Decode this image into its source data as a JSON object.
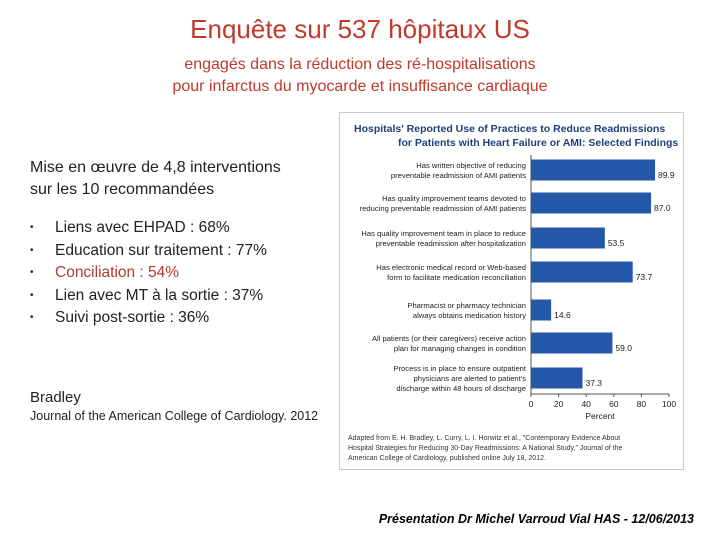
{
  "slide": {
    "title": "Enquête sur 537 hôpitaux US",
    "subtitle_line1": "engagés dans la réduction des ré-hospitalisations",
    "subtitle_line2": "pour infarctus du myocarde et insuffisance cardiaque",
    "intro_line1": "Mise en œuvre de 4,8 interventions",
    "intro_line2": "sur les 10 recommandées",
    "bullets": [
      "Liens avec EHPAD : 68%",
      "Education sur traitement : 77%",
      "Conciliation : 54%",
      "Lien avec MT à la sortie : 37%",
      "Suivi post-sortie : 36%"
    ],
    "author": "Bradley",
    "journal": "Journal of the American College of Cardiology. 2012",
    "footer": "Présentation Dr Michel Varroud Vial HAS - 12/06/2013"
  },
  "colors": {
    "title": "#c0392b",
    "accent_bullet": "#b03a2e",
    "bar": "#2457a8",
    "figure_title": "#1f3f7a"
  },
  "chart_data": {
    "type": "bar",
    "orientation": "horizontal",
    "title_line1": "Hospitals' Reported Use of Practices to Reduce Readmissions",
    "title_line2": "for Patients with Heart Failure or AMI: Selected Findings",
    "categories": [
      [
        "Has written objective of reducing",
        "preventable readmission of AMI patients"
      ],
      [
        "Has quality improvement teams devoted to",
        "reducing preventable readmission of AMI patients"
      ],
      [
        "Has quality improvement team in place to reduce",
        "preventable readmission after hospitalization"
      ],
      [
        "Has electronic medical record or Web-based",
        "form to facilitate medication reconciliation"
      ],
      [
        "Pharmacist or pharmacy technician",
        "always obtains medication history"
      ],
      [
        "All patients (or their caregivers) receive action",
        "plan for managing changes in condition"
      ],
      [
        "Process is in place to ensure outpatient",
        "physicians are alerted to patient's",
        "discharge within 48 hours of discharge"
      ]
    ],
    "values": [
      89.9,
      87.0,
      53.5,
      73.7,
      14.6,
      59.0,
      37.3
    ],
    "value_labels": [
      "89.9",
      "87.0",
      "53.5",
      "73.7",
      "14.6",
      "59.0",
      "37.3"
    ],
    "xlim": [
      0,
      100
    ],
    "xticks": [
      "0",
      "20",
      "40",
      "60",
      "80",
      "100"
    ],
    "xlabel": "Percent",
    "source_lines": [
      "Adapted from E. H. Bradley, L. Curry, L. I. Horwitz et al., \"Contemporary Evidence About",
      "Hospital Strategies for Reducing 30-Day Readmissions: A National Study,\" Journal of the",
      "American College of Cardiology, published online July 18, 2012."
    ]
  }
}
